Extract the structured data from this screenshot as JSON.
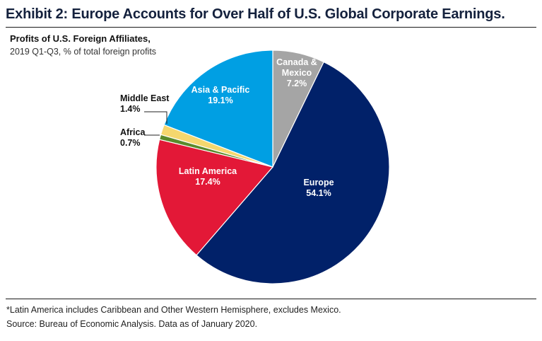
{
  "header": {
    "title": "Exhibit 2: Europe Accounts for Over Half of U.S. Global Corporate Earnings.",
    "subtitle": "Profits of U.S. Foreign Affiliates,",
    "subtitle2": "2019 Q1-Q3, % of total foreign profits"
  },
  "footer": {
    "footnote": "*Latin America includes Caribbean and Other Western Hemisphere, excludes Mexico.",
    "source": "Source: Bureau of Economic Analysis. Data as of January 2020."
  },
  "chart_data": {
    "type": "pie",
    "title": "Profits of U.S. Foreign Affiliates,",
    "subtitle": "2019 Q1-Q3, % of total foreign profits",
    "slices": [
      {
        "name": "Canada & Mexico",
        "label_lines": [
          "Canada &",
          "Mexico"
        ],
        "value": 7.2,
        "value_label": "7.2%",
        "color": "#a5a5a5",
        "label_color": "#ffffff",
        "label_pos": "inside"
      },
      {
        "name": "Europe",
        "label_lines": [
          "Europe"
        ],
        "value": 54.1,
        "value_label": "54.1%",
        "color": "#012169",
        "label_color": "#ffffff",
        "label_pos": "inside"
      },
      {
        "name": "Latin America",
        "label_lines": [
          "Latin America"
        ],
        "value": 17.4,
        "value_label": "17.4%",
        "color": "#e31837",
        "label_color": "#ffffff",
        "label_pos": "inside"
      },
      {
        "name": "Africa",
        "label_lines": [
          "Africa"
        ],
        "value": 0.7,
        "value_label": "0.7%",
        "color": "#5a8a2b",
        "label_color": "#111111",
        "label_pos": "outside"
      },
      {
        "name": "Middle East",
        "label_lines": [
          "Middle East"
        ],
        "value": 1.4,
        "value_label": "1.4%",
        "color": "#f5d76e",
        "label_color": "#111111",
        "label_pos": "outside"
      },
      {
        "name": "Asia & Pacific",
        "label_lines": [
          "Asia & Pacific"
        ],
        "value": 19.1,
        "value_label": "19.1%",
        "color": "#009fe3",
        "label_color": "#ffffff",
        "label_pos": "inside"
      }
    ]
  }
}
